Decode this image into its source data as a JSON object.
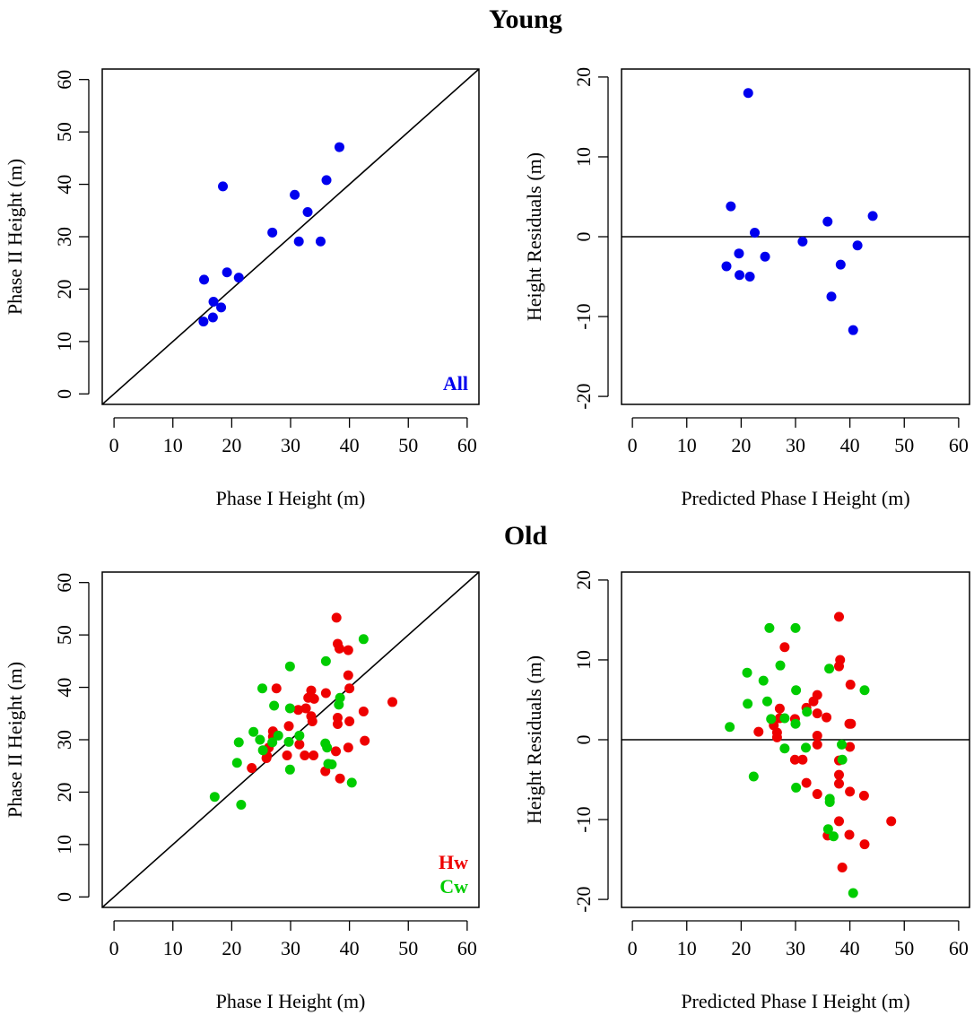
{
  "sections": {
    "young": "Young",
    "old": "Old"
  },
  "colors": {
    "All": "#0000ee",
    "Hw": "#ee0000",
    "Cw": "#00cc00"
  },
  "chart_data": [
    {
      "id": "young-height",
      "type": "scatter",
      "xlabel": "Phase I Height (m)",
      "ylabel": "Phase II Height (m)",
      "xlim": [
        -2,
        62
      ],
      "ylim": [
        -2,
        62
      ],
      "xticks": [
        0,
        10,
        20,
        30,
        40,
        50,
        60
      ],
      "yticks": [
        0,
        10,
        20,
        30,
        40,
        50,
        60
      ],
      "reference_line": "1:1",
      "legend": [
        "All"
      ],
      "series": [
        {
          "name": "All",
          "points": [
            [
              15.3,
              21.8
            ],
            [
              15.2,
              13.8
            ],
            [
              16.9,
              17.6
            ],
            [
              16.8,
              14.6
            ],
            [
              18.2,
              16.5
            ],
            [
              18.5,
              39.6
            ],
            [
              19.2,
              23.2
            ],
            [
              21.2,
              22.2
            ],
            [
              26.9,
              30.8
            ],
            [
              30.7,
              38.0
            ],
            [
              31.4,
              29.1
            ],
            [
              32.9,
              34.7
            ],
            [
              35.1,
              29.1
            ],
            [
              36.1,
              40.8
            ],
            [
              38.3,
              47.1
            ]
          ]
        }
      ]
    },
    {
      "id": "young-residuals",
      "type": "scatter",
      "xlabel": "Predicted Phase I Height (m)",
      "ylabel": "Height Residuals (m)",
      "xlim": [
        -2,
        62
      ],
      "ylim": [
        -21,
        21
      ],
      "xticks": [
        0,
        10,
        20,
        30,
        40,
        50,
        60
      ],
      "yticks": [
        -20,
        -10,
        0,
        10,
        20
      ],
      "reference_line": "y=0",
      "series": [
        {
          "name": "All",
          "points": [
            [
              17.3,
              -3.7
            ],
            [
              18.1,
              3.8
            ],
            [
              19.6,
              -2.1
            ],
            [
              19.7,
              -4.8
            ],
            [
              21.3,
              18.0
            ],
            [
              21.6,
              -5.0
            ],
            [
              22.5,
              0.5
            ],
            [
              24.4,
              -2.5
            ],
            [
              31.3,
              -0.6
            ],
            [
              35.9,
              1.9
            ],
            [
              36.6,
              -7.5
            ],
            [
              38.3,
              -3.5
            ],
            [
              41.4,
              -1.1
            ],
            [
              40.6,
              -11.7
            ],
            [
              44.2,
              2.6
            ]
          ]
        }
      ]
    },
    {
      "id": "old-height",
      "type": "scatter",
      "xlabel": "Phase I Height (m)",
      "ylabel": "Phase II Height (m)",
      "xlim": [
        -2,
        62
      ],
      "ylim": [
        -2,
        62
      ],
      "xticks": [
        0,
        10,
        20,
        30,
        40,
        50,
        60
      ],
      "yticks": [
        0,
        10,
        20,
        30,
        40,
        50,
        60
      ],
      "reference_line": "1:1",
      "legend": [
        "Hw",
        "Cw"
      ],
      "series": [
        {
          "name": "Hw",
          "points": [
            [
              37.8,
              53.3
            ],
            [
              38.0,
              48.3
            ],
            [
              38.3,
              47.4
            ],
            [
              39.8,
              47.1
            ],
            [
              39.8,
              42.3
            ],
            [
              40.0,
              39.8
            ],
            [
              36.0,
              38.9
            ],
            [
              33.5,
              39.4
            ],
            [
              33.0,
              38.0
            ],
            [
              34.0,
              37.8
            ],
            [
              47.3,
              37.2
            ],
            [
              27.6,
              39.8
            ],
            [
              33.5,
              34.5
            ],
            [
              38.0,
              34.2
            ],
            [
              33.7,
              33.5
            ],
            [
              38.0,
              33.0
            ],
            [
              40.0,
              33.5
            ],
            [
              42.4,
              35.4
            ],
            [
              29.7,
              32.6
            ],
            [
              31.3,
              35.7
            ],
            [
              32.6,
              36.0
            ],
            [
              27.0,
              31.6
            ],
            [
              27.0,
              30.6
            ],
            [
              31.5,
              29.1
            ],
            [
              37.7,
              27.8
            ],
            [
              42.6,
              29.8
            ],
            [
              39.8,
              28.5
            ],
            [
              32.4,
              27.0
            ],
            [
              33.9,
              27.0
            ],
            [
              29.4,
              27.0
            ],
            [
              26.3,
              28.5
            ],
            [
              26.0,
              26.9
            ],
            [
              25.9,
              26.5
            ],
            [
              23.4,
              24.6
            ],
            [
              35.9,
              24.0
            ],
            [
              38.4,
              22.6
            ]
          ]
        },
        {
          "name": "Cw",
          "points": [
            [
              42.4,
              49.2
            ],
            [
              36.0,
              45.0
            ],
            [
              29.9,
              44.0
            ],
            [
              25.2,
              39.8
            ],
            [
              38.4,
              38.0
            ],
            [
              38.2,
              36.7
            ],
            [
              27.2,
              36.5
            ],
            [
              29.9,
              36.0
            ],
            [
              23.7,
              31.5
            ],
            [
              24.8,
              30.0
            ],
            [
              27.9,
              30.8
            ],
            [
              31.5,
              30.8
            ],
            [
              29.7,
              29.6
            ],
            [
              21.2,
              29.5
            ],
            [
              25.3,
              28.0
            ],
            [
              26.9,
              29.5
            ],
            [
              35.9,
              29.3
            ],
            [
              36.2,
              28.5
            ],
            [
              20.9,
              25.6
            ],
            [
              36.4,
              25.4
            ],
            [
              37.0,
              25.3
            ],
            [
              29.9,
              24.3
            ],
            [
              40.4,
              21.8
            ],
            [
              17.1,
              19.1
            ],
            [
              21.6,
              17.6
            ]
          ]
        }
      ]
    },
    {
      "id": "old-residuals",
      "type": "scatter",
      "xlabel": "Predicted Phase I Height (m)",
      "ylabel": "Height Residuals (m)",
      "xlim": [
        -2,
        62
      ],
      "ylim": [
        -21,
        21
      ],
      "xticks": [
        0,
        10,
        20,
        30,
        40,
        50,
        60
      ],
      "yticks": [
        -20,
        -10,
        0,
        10,
        20
      ],
      "reference_line": "y=0",
      "series": [
        {
          "name": "Hw",
          "points": [
            [
              38.0,
              15.4
            ],
            [
              28.0,
              11.6
            ],
            [
              38.2,
              10.0
            ],
            [
              38.0,
              9.2
            ],
            [
              40.1,
              6.9
            ],
            [
              34.0,
              5.6
            ],
            [
              33.3,
              4.8
            ],
            [
              32.0,
              4.0
            ],
            [
              27.1,
              3.9
            ],
            [
              34.0,
              3.3
            ],
            [
              27.1,
              2.7
            ],
            [
              29.9,
              2.6
            ],
            [
              35.7,
              2.8
            ],
            [
              39.9,
              2.0
            ],
            [
              40.2,
              2.0
            ],
            [
              26.0,
              1.8
            ],
            [
              26.6,
              0.9
            ],
            [
              23.2,
              1.0
            ],
            [
              26.6,
              0.3
            ],
            [
              34.0,
              0.5
            ],
            [
              34.0,
              -0.6
            ],
            [
              40.0,
              -0.9
            ],
            [
              38.0,
              -2.6
            ],
            [
              29.9,
              -2.5
            ],
            [
              31.3,
              -2.5
            ],
            [
              38.0,
              -4.4
            ],
            [
              38.0,
              -5.5
            ],
            [
              32.0,
              -5.4
            ],
            [
              34.0,
              -6.8
            ],
            [
              40.0,
              -6.5
            ],
            [
              42.6,
              -7.0
            ],
            [
              38.0,
              -10.2
            ],
            [
              47.6,
              -10.2
            ],
            [
              35.9,
              -12.0
            ],
            [
              39.9,
              -11.9
            ],
            [
              42.7,
              -13.1
            ],
            [
              38.6,
              -16.0
            ]
          ]
        },
        {
          "name": "Cw",
          "points": [
            [
              25.2,
              14.0
            ],
            [
              30.0,
              14.0
            ],
            [
              27.2,
              9.3
            ],
            [
              36.2,
              8.9
            ],
            [
              21.1,
              8.4
            ],
            [
              24.1,
              7.4
            ],
            [
              42.7,
              6.2
            ],
            [
              24.8,
              4.8
            ],
            [
              21.2,
              4.5
            ],
            [
              32.1,
              3.5
            ],
            [
              25.5,
              2.6
            ],
            [
              30.1,
              6.2
            ],
            [
              28.0,
              2.7
            ],
            [
              30.0,
              2.0
            ],
            [
              17.9,
              1.6
            ],
            [
              28.0,
              -1.1
            ],
            [
              31.9,
              -1.0
            ],
            [
              38.5,
              -0.6
            ],
            [
              38.6,
              -2.5
            ],
            [
              30.1,
              -6.0
            ],
            [
              22.3,
              -4.6
            ],
            [
              36.3,
              -7.4
            ],
            [
              36.3,
              -7.8
            ],
            [
              36.0,
              -11.2
            ],
            [
              37.0,
              -12.1
            ],
            [
              40.6,
              -19.2
            ]
          ]
        }
      ]
    }
  ]
}
